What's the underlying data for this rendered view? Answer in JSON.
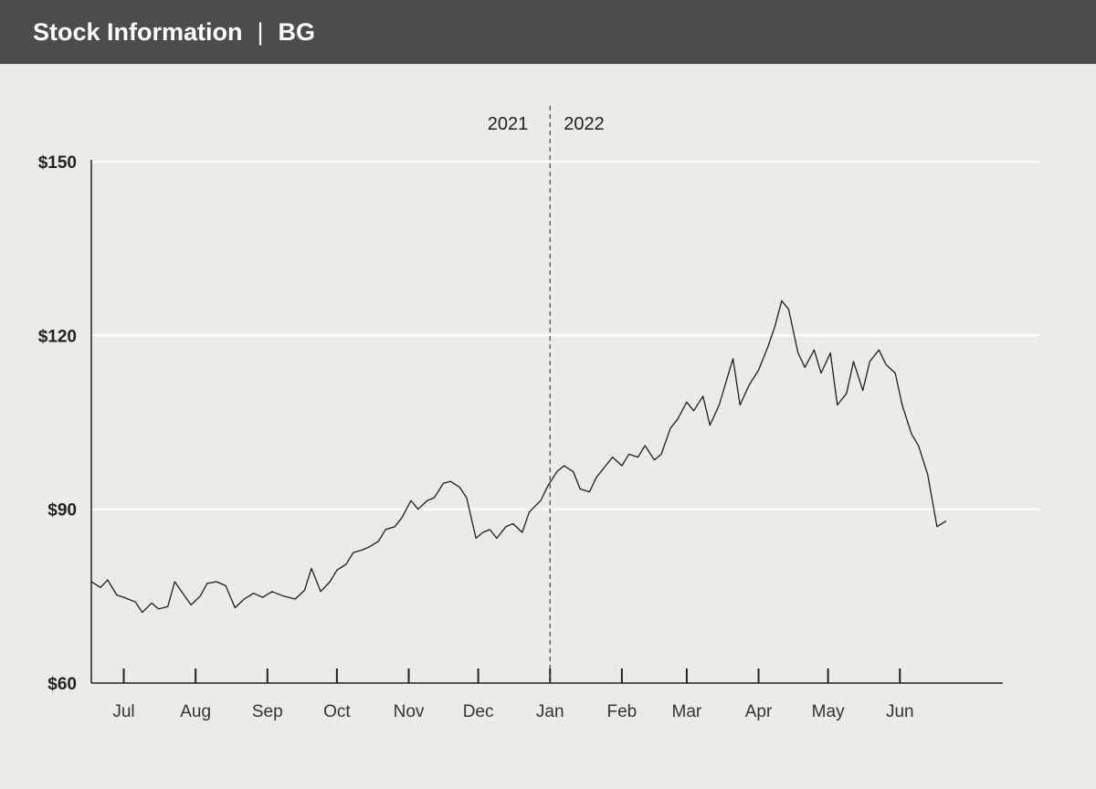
{
  "header": {
    "title": "Stock Information",
    "separator": "|",
    "ticker": "BG"
  },
  "colors": {
    "header_bg": "#4b4c4b",
    "page_bg": "#edebe6",
    "line": "#1e1e1e",
    "gridline": "#ffffff"
  },
  "chart_data": {
    "type": "line",
    "title": "",
    "xlabel": "",
    "ylabel": "",
    "ylim": [
      60,
      150
    ],
    "yticks": [
      60,
      90,
      120,
      150
    ],
    "ytick_labels": [
      "$60",
      "$90",
      "$120",
      "$150"
    ],
    "grid": "horizontal",
    "xlim": [
      "2021-06-17",
      "2022-06-21"
    ],
    "month_labels": [
      {
        "label": "Jul",
        "date": "2021-07-01"
      },
      {
        "label": "Aug",
        "date": "2021-08-01"
      },
      {
        "label": "Sep",
        "date": "2021-09-01"
      },
      {
        "label": "Oct",
        "date": "2021-10-01"
      },
      {
        "label": "Nov",
        "date": "2021-11-01"
      },
      {
        "label": "Dec",
        "date": "2021-12-01"
      },
      {
        "label": "Jan",
        "date": "2022-01-01"
      },
      {
        "label": "Feb",
        "date": "2022-02-01"
      },
      {
        "label": "Mar",
        "date": "2022-03-01"
      },
      {
        "label": "Apr",
        "date": "2022-04-01"
      },
      {
        "label": "May",
        "date": "2022-05-01"
      },
      {
        "label": "Jun",
        "date": "2022-06-01"
      }
    ],
    "year_divider": {
      "date": "2022-01-01",
      "left_label": "2021",
      "right_label": "2022"
    },
    "series": [
      {
        "points": [
          [
            "2021-06-17",
            77.5
          ],
          [
            "2021-06-21",
            76.5
          ],
          [
            "2021-06-24",
            77.8
          ],
          [
            "2021-06-28",
            75.2
          ],
          [
            "2021-07-01",
            74.8
          ],
          [
            "2021-07-06",
            74.0
          ],
          [
            "2021-07-09",
            72.2
          ],
          [
            "2021-07-13",
            73.8
          ],
          [
            "2021-07-16",
            72.8
          ],
          [
            "2021-07-20",
            73.2
          ],
          [
            "2021-07-23",
            77.5
          ],
          [
            "2021-07-27",
            75.2
          ],
          [
            "2021-07-30",
            73.5
          ],
          [
            "2021-08-03",
            75.0
          ],
          [
            "2021-08-06",
            77.2
          ],
          [
            "2021-08-10",
            77.5
          ],
          [
            "2021-08-14",
            76.8
          ],
          [
            "2021-08-18",
            73.0
          ],
          [
            "2021-08-22",
            74.5
          ],
          [
            "2021-08-26",
            75.5
          ],
          [
            "2021-08-30",
            74.8
          ],
          [
            "2021-09-03",
            75.8
          ],
          [
            "2021-09-08",
            75.0
          ],
          [
            "2021-09-13",
            74.5
          ],
          [
            "2021-09-17",
            76.0
          ],
          [
            "2021-09-20",
            79.8
          ],
          [
            "2021-09-24",
            75.8
          ],
          [
            "2021-09-28",
            77.5
          ],
          [
            "2021-10-01",
            79.5
          ],
          [
            "2021-10-05",
            80.5
          ],
          [
            "2021-10-08",
            82.5
          ],
          [
            "2021-10-12",
            83.0
          ],
          [
            "2021-10-15",
            83.5
          ],
          [
            "2021-10-19",
            84.5
          ],
          [
            "2021-10-22",
            86.5
          ],
          [
            "2021-10-26",
            87.0
          ],
          [
            "2021-10-29",
            88.5
          ],
          [
            "2021-11-02",
            91.5
          ],
          [
            "2021-11-05",
            90.0
          ],
          [
            "2021-11-09",
            91.5
          ],
          [
            "2021-11-12",
            92.0
          ],
          [
            "2021-11-16",
            94.5
          ],
          [
            "2021-11-19",
            94.8
          ],
          [
            "2021-11-23",
            93.8
          ],
          [
            "2021-11-26",
            92.0
          ],
          [
            "2021-11-30",
            85.0
          ],
          [
            "2021-12-03",
            86.0
          ],
          [
            "2021-12-06",
            86.5
          ],
          [
            "2021-12-09",
            85.0
          ],
          [
            "2021-12-13",
            87.0
          ],
          [
            "2021-12-16",
            87.5
          ],
          [
            "2021-12-20",
            86.0
          ],
          [
            "2021-12-23",
            89.5
          ],
          [
            "2021-12-28",
            91.5
          ],
          [
            "2021-12-31",
            94.0
          ],
          [
            "2022-01-04",
            96.5
          ],
          [
            "2022-01-07",
            97.5
          ],
          [
            "2022-01-11",
            96.5
          ],
          [
            "2022-01-14",
            93.5
          ],
          [
            "2022-01-18",
            93.0
          ],
          [
            "2022-01-21",
            95.5
          ],
          [
            "2022-01-25",
            97.5
          ],
          [
            "2022-01-28",
            99.0
          ],
          [
            "2022-02-01",
            97.5
          ],
          [
            "2022-02-04",
            99.5
          ],
          [
            "2022-02-08",
            99.0
          ],
          [
            "2022-02-11",
            101.0
          ],
          [
            "2022-02-15",
            98.5
          ],
          [
            "2022-02-18",
            99.5
          ],
          [
            "2022-02-22",
            104.0
          ],
          [
            "2022-02-25",
            105.5
          ],
          [
            "2022-03-01",
            108.5
          ],
          [
            "2022-03-04",
            107.0
          ],
          [
            "2022-03-08",
            109.5
          ],
          [
            "2022-03-11",
            104.5
          ],
          [
            "2022-03-15",
            108.0
          ],
          [
            "2022-03-18",
            112.0
          ],
          [
            "2022-03-21",
            116.0
          ],
          [
            "2022-03-24",
            108.0
          ],
          [
            "2022-03-28",
            111.5
          ],
          [
            "2022-04-01",
            114.0
          ],
          [
            "2022-04-05",
            118.0
          ],
          [
            "2022-04-08",
            121.5
          ],
          [
            "2022-04-11",
            126.0
          ],
          [
            "2022-04-14",
            124.5
          ],
          [
            "2022-04-18",
            117.0
          ],
          [
            "2022-04-21",
            114.5
          ],
          [
            "2022-04-25",
            117.5
          ],
          [
            "2022-04-28",
            113.5
          ],
          [
            "2022-05-02",
            117.0
          ],
          [
            "2022-05-05",
            108.0
          ],
          [
            "2022-05-09",
            110.0
          ],
          [
            "2022-05-12",
            115.5
          ],
          [
            "2022-05-16",
            110.5
          ],
          [
            "2022-05-19",
            115.5
          ],
          [
            "2022-05-23",
            117.5
          ],
          [
            "2022-05-26",
            115.0
          ],
          [
            "2022-05-30",
            113.5
          ],
          [
            "2022-06-02",
            108.0
          ],
          [
            "2022-06-06",
            103.0
          ],
          [
            "2022-06-09",
            101.0
          ],
          [
            "2022-06-13",
            96.0
          ],
          [
            "2022-06-17",
            87.0
          ],
          [
            "2022-06-21",
            88.0
          ]
        ]
      }
    ]
  }
}
